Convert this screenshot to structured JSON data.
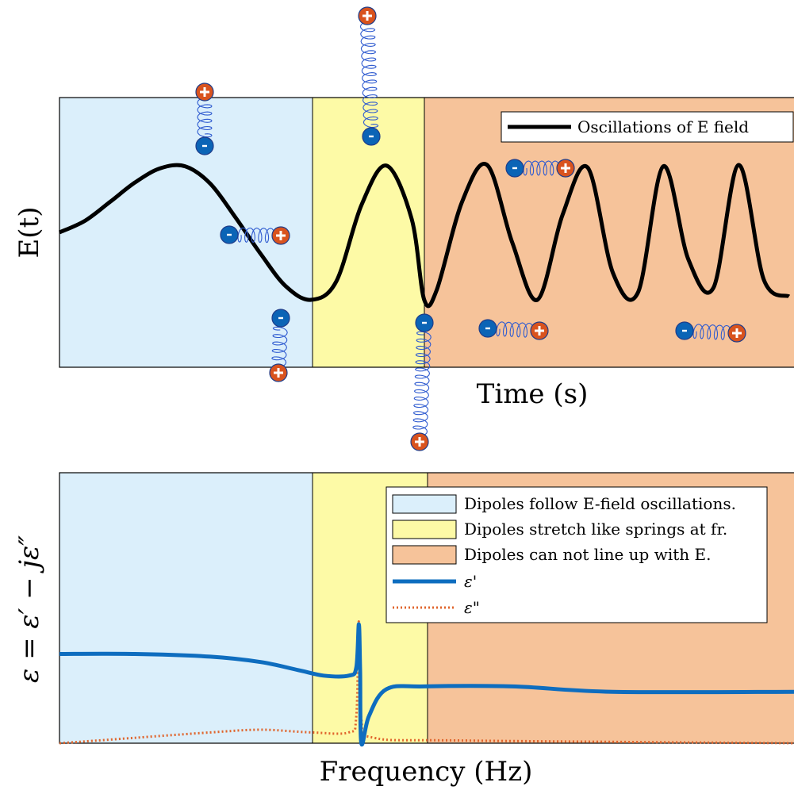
{
  "chart_data": [
    {
      "type": "line",
      "xlabel": "Time (s)",
      "ylabel": "E(t)",
      "legend": {
        "position": "top-right",
        "entries": [
          "Oscillations of E field"
        ]
      },
      "grid": false,
      "colors": {
        "region_low": "#dbeffb",
        "region_resonance": "#fdfaa6",
        "region_high": "#f6c39a",
        "line": "#000000",
        "spring": "#2f5bd0",
        "positive_charge": "#d9531e",
        "negative_charge": "#0b64b6"
      },
      "regions": [
        {
          "name": "low",
          "x": [
            0,
            1
          ]
        },
        {
          "name": "resonance",
          "x": [
            1,
            1.45
          ]
        },
        {
          "name": "high",
          "x": [
            1.45,
            2.92
          ]
        }
      ],
      "series": [
        {
          "name": "Oscillations of E field",
          "points": [
            [
              0.0,
              0.0
            ],
            [
              0.1,
              0.17
            ],
            [
              0.2,
              0.45
            ],
            [
              0.3,
              0.74
            ],
            [
              0.4,
              0.95
            ],
            [
              0.5,
              0.98
            ],
            [
              0.6,
              0.72
            ],
            [
              0.7,
              0.22
            ],
            [
              0.8,
              -0.32
            ],
            [
              0.9,
              -0.8
            ],
            [
              1.0,
              -1.0
            ],
            [
              1.1,
              -0.73
            ],
            [
              1.2,
              0.4
            ],
            [
              1.3,
              0.99
            ],
            [
              1.4,
              0.2
            ],
            [
              1.45,
              -1.0
            ],
            [
              1.5,
              -0.85
            ],
            [
              1.6,
              0.45
            ],
            [
              1.7,
              1.0
            ],
            [
              1.8,
              -0.15
            ],
            [
              1.9,
              -1.0
            ],
            [
              2.0,
              0.26
            ],
            [
              2.1,
              0.96
            ],
            [
              2.2,
              -0.6
            ],
            [
              2.3,
              -0.89
            ],
            [
              2.4,
              0.98
            ],
            [
              2.5,
              -0.4
            ],
            [
              2.6,
              -0.82
            ],
            [
              2.7,
              1.0
            ],
            [
              2.8,
              -0.7
            ],
            [
              2.9,
              -0.95
            ]
          ]
        }
      ]
    },
    {
      "type": "line",
      "xlabel": "Frequency (Hz)",
      "ylabel": "ε = ε′ − jε″",
      "legend": {
        "position": "top-right",
        "entries": [
          {
            "label": "Dipoles follow E-field oscillations.",
            "kind": "patch",
            "color": "#dbeffb"
          },
          {
            "label": "Dipoles stretch like springs at fr.",
            "kind": "patch",
            "color": "#fdfaa6"
          },
          {
            "label": "Dipoles can not line up with E.",
            "kind": "patch",
            "color": "#f6c39a"
          },
          {
            "label": "ε'",
            "kind": "line",
            "color": "#0e6dbf"
          },
          {
            "label": "ε\"",
            "kind": "dotted",
            "color": "#e0652d"
          }
        ]
      },
      "grid": false,
      "ylim": [
        0,
        1
      ],
      "regions": [
        {
          "name": "low",
          "x": [
            0,
            1
          ]
        },
        {
          "name": "resonance",
          "x": [
            1,
            1.45
          ]
        },
        {
          "name": "high",
          "x": [
            1.45,
            2.92
          ]
        }
      ],
      "series": [
        {
          "name": "ε'",
          "points": [
            [
              0.0,
              0.33
            ],
            [
              0.3,
              0.33
            ],
            [
              0.6,
              0.32
            ],
            [
              0.8,
              0.3
            ],
            [
              0.95,
              0.27
            ],
            [
              1.05,
              0.25
            ],
            [
              1.15,
              0.25
            ],
            [
              1.18,
              0.28
            ],
            [
              1.19,
              0.44
            ],
            [
              1.195,
              0.27
            ],
            [
              1.2,
              0.0
            ],
            [
              1.23,
              0.1
            ],
            [
              1.3,
              0.2
            ],
            [
              1.45,
              0.21
            ],
            [
              1.8,
              0.21
            ],
            [
              2.2,
              0.19
            ],
            [
              2.92,
              0.19
            ]
          ]
        },
        {
          "name": "ε\"",
          "points": [
            [
              0.0,
              0.0
            ],
            [
              0.3,
              0.02
            ],
            [
              0.6,
              0.04
            ],
            [
              0.8,
              0.05
            ],
            [
              1.0,
              0.04
            ],
            [
              1.15,
              0.04
            ],
            [
              1.18,
              0.1
            ],
            [
              1.19,
              0.45
            ],
            [
              1.2,
              0.09
            ],
            [
              1.25,
              0.02
            ],
            [
              1.6,
              0.01
            ],
            [
              2.92,
              0.0
            ]
          ]
        }
      ]
    }
  ]
}
